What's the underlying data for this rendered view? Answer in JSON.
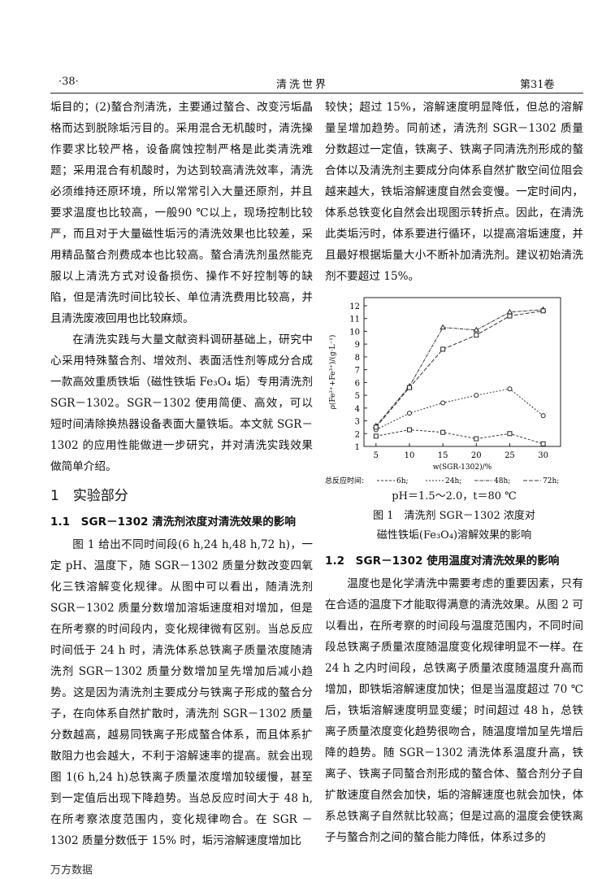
{
  "header": {
    "page": "·38·",
    "journal": "清洗世界",
    "volume": "第31卷"
  },
  "left": {
    "p1": "垢目的；(2)螯合剂清洗，主要通过螯合、改变污垢晶格而达到脱除垢污目的。采用混合无机酸时，清洗操作要求比较严格，设备腐蚀控制严格是此类清洗难题；采用混合有机酸时，为达到较高清洗效率，清洗必须维持还原环境，所以常常引入大量还原剂，并且要求温度也比较高，一般90 ℃以上，现场控制比较严，而且对于大量磁性垢污的清洗效果也比较差，采用精品螯合剂费成本也比较高。螯合清洗剂虽然能克服以上清洗方式对设备损伤、操作不好控制等的缺陷，但是清洗时间比较长、单位清洗费用比较高，并且清洗废液回用也比较麻烦。",
    "p2": "在清洗实践与大量文献资料调研基础上，研究中心采用特殊螯合剂、增效剂、表面活性剂等成分合成一款高效重质铁垢（磁性铁垢 Fe₃O₄ 垢）专用清洗剂 SGR－1302。SGR－1302 使用简便、高效，可以短时间清除换热器设备表面大量铁垢。本文就 SGR－1302 的应用性能做进一步研究，并对清洗实践效果做简单介绍。",
    "section": "1　实验部分",
    "sub": "1.1　SGR－1302 清洗剂浓度对清洗效果的影响",
    "p3": "图 1 给出不同时间段(6 h,24 h,48 h,72 h)，一定 pH、温度下，随 SGR－1302 质量分数改变四氧化三铁溶解变化规律。从图中可以看出，随清洗剂 SGR－1302 质量分数增加溶垢速度相对增加，但是在所考察的时间段内，变化规律微有区别。当总反应时间低于 24 h 时，清洗体系总铁离子质量浓度随清洗剂 SGR－1302 质量分数增加呈先增加后减小趋势。这是因为清洗剂主要成分与铁离子形成的螯合分子，在向体系自然扩散时，清洗剂 SGR－1302 质量分数越高，越易同铁离子形成螯合体系，而且体系扩散阻力也会越大，不利于溶解速率的提高。就会出现图 1(6 h,24 h)总铁离子质量浓度增加较缓慢，甚至到一定值后出现下降趋势。当总反应时间大于 48 h,在所考察浓度范围内，变化规律吻合。在 SGR －1302 质量分数低于 15% 时，垢污溶解速度增加比"
  },
  "right": {
    "p1": "较快；超过 15%，溶解速度明显降低，但总的溶解量呈增加趋势。同前述，清洗剂 SGR－1302 质量分数超过一定值，铁离子、铁离子同清洗剂形成的螯合体以及清洗剂主要成分向体系自然扩散空间位阻会越来越大，铁垢溶解速度自然会变慢。一定时间内，体系总铁变化自然会出现图示转折点。因此，在清洗此类垢污时，体系要进行循环，以提高溶垢速度，并且最好根据垢量大小不断补加清洗剂。建议初始清洗剂不要超过 15%。",
    "condition": "pH＝1.5～2.0，t＝80 ℃",
    "caption1": "图 1　清洗剂 SGR－1302 浓度对",
    "caption2": "磁性铁垢(Fe₃O₄)溶解效果的影响",
    "sub": "1.2　SGR－1302 使用温度对清洗效果的影响",
    "p2": "温度也是化学清洗中需要考虑的重要因素，只有在合适的温度下才能取得满意的清洗效果。从图 2 可以看出，在所考察的时间段与温度范围内，不同时间段总铁离子质量浓度随温度变化规律明显不一样。在 24 h 之内时间段，总铁离子质量浓度随温度升高而增加，即铁垢溶解速度加快；但是当温度超过 70 ℃后，铁垢溶解速度明显变缓；时间超过 48 h，总铁离子质量浓度变化趋势很吻合，随温度增加呈先增后降的趋势。随 SGR－1302 清洗体系温度升高，铁离子、铁离子同螯合剂形成的螯合体、螯合剂分子自扩散速度自然会加快，垢的溶解速度也就会加快，体系总铁离子自然就比较高；但是过高的温度会使铁离子与螯合剂之间的螯合能力降低，体系过多的"
  },
  "footer": "万方数据",
  "chart_data": {
    "type": "line",
    "x": [
      5,
      10,
      15,
      20,
      25,
      30
    ],
    "xlabel": "w(SGR-1302)/%",
    "ylabel": "ρ(Fe²⁺+Fe³⁺)/(g·L⁻¹)",
    "xticks": [
      5,
      10,
      15,
      20,
      25,
      30
    ],
    "yticks": [
      1,
      2,
      3,
      4,
      5,
      6,
      7,
      8,
      9,
      10,
      11,
      12
    ],
    "ylim": [
      1,
      12
    ],
    "legend_title": "总反应时间:",
    "series": [
      {
        "name": "6h;",
        "values": [
          1.8,
          2.3,
          2.1,
          1.6,
          2.0,
          1.2
        ],
        "marker": "square"
      },
      {
        "name": "24h;",
        "values": [
          2.3,
          3.6,
          4.4,
          5.0,
          5.5,
          3.4
        ],
        "marker": "circle"
      },
      {
        "name": "48h;",
        "values": [
          2.6,
          5.7,
          10.3,
          10.1,
          11.5,
          11.7
        ],
        "marker": "triangle"
      },
      {
        "name": "72h;",
        "values": [
          2.5,
          5.6,
          8.6,
          9.7,
          11.2,
          11.6
        ],
        "marker": "star"
      }
    ]
  }
}
